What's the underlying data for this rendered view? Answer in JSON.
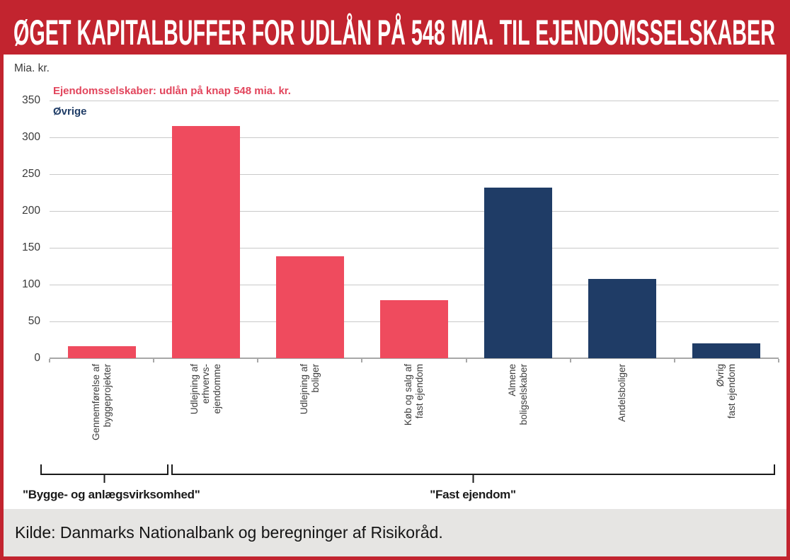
{
  "header": {
    "title": "ØGET KAPITALBUFFER FOR UDLÅN PÅ 548 MIA. TIL EJENDOMSSELSKABER",
    "background_color": "#c2242f",
    "text_color": "#ffffff"
  },
  "chart": {
    "unit_label": "Mia. kr.",
    "legend": [
      {
        "label": "Ejendomsselskaber: udlån på knap 548 mia. kr.",
        "color": "#e2455c"
      },
      {
        "label": "Øvrige",
        "color": "#1f3c66"
      }
    ]
  },
  "chart_data": {
    "type": "bar",
    "title": "ØGET KAPITALBUFFER FOR UDLÅN PÅ 548 MIA. TIL EJENDOMSSELSKABER",
    "xlabel": "",
    "ylabel": "Mia. kr.",
    "ylim": [
      0,
      350
    ],
    "yticks": [
      0,
      50,
      100,
      150,
      200,
      250,
      300,
      350
    ],
    "grid": true,
    "legend_position": "top-left",
    "categories": [
      "Gennemførelse af byggeprojekter",
      "Udlejning af erhvervs-ejendomme",
      "Udlejning af boliger",
      "Køb og salg af fast ejendom",
      "Almene boligselskaber",
      "Andelsboliger",
      "Øvrig fast ejendom"
    ],
    "category_lines": [
      [
        "Gennemførelse af",
        "byggeprojekter"
      ],
      [
        "Udlejning af",
        "erhvervs-",
        "ejendomme"
      ],
      [
        "Udlejning af",
        "boliger"
      ],
      [
        "Køb og salg af",
        "fast ejendom"
      ],
      [
        "Almene",
        "boligselskaber"
      ],
      [
        "Andelsboliger"
      ],
      [
        "Øvrig",
        "fast ejendom"
      ]
    ],
    "values": [
      16,
      315,
      138,
      79,
      232,
      108,
      20
    ],
    "bar_colors": [
      "#ef4b5e",
      "#ef4b5e",
      "#ef4b5e",
      "#ef4b5e",
      "#1f3c66",
      "#1f3c66",
      "#1f3c66"
    ],
    "series": [
      {
        "name": "Ejendomsselskaber: udlån på knap 548 mia. kr.",
        "color": "#ef4b5e",
        "categories": [
          "Gennemførelse af byggeprojekter",
          "Udlejning af erhvervs-ejendomme",
          "Udlejning af boliger",
          "Køb og salg af fast ejendom"
        ],
        "values": [
          16,
          315,
          138,
          79
        ]
      },
      {
        "name": "Øvrige",
        "color": "#1f3c66",
        "categories": [
          "Almene boligselskaber",
          "Andelsboliger",
          "Øvrig fast ejendom"
        ],
        "values": [
          232,
          108,
          20
        ]
      }
    ],
    "groups": [
      {
        "label": "\"Bygge- og anlægsvirksomhed\"",
        "from_category": 0,
        "to_category": 0
      },
      {
        "label": "\"Fast ejendom\"",
        "from_category": 1,
        "to_category": 6
      }
    ]
  },
  "footer": {
    "source": "Kilde: Danmarks Nationalbank og beregninger af Risikoråd.",
    "background_color": "#e6e5e3"
  }
}
